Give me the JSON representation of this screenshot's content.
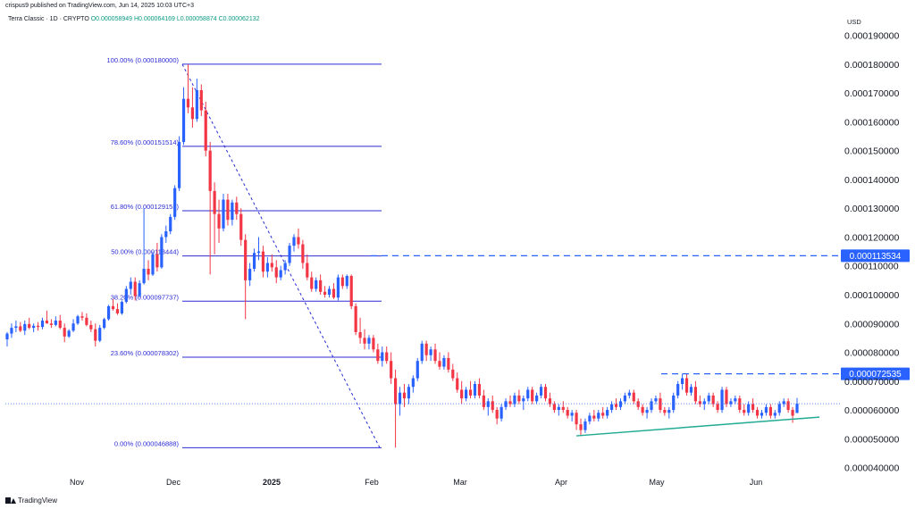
{
  "header": {
    "published": "crispus9 published on TradingView.com, Jun 14, 2025 10:03 UTC+3",
    "symbol": "Terra Classic · 1D · CRYPTO",
    "ohlc": "O0.000058949  H0.000064169  L0.000058874  C0.000062132",
    "currency": "USD"
  },
  "footer": {
    "brand": "TradingView"
  },
  "colors": {
    "up": "#2962ff",
    "down": "#f23645",
    "fib": "#2b2bd6",
    "trend": "#22ab94",
    "badge": "#2962ff"
  },
  "chart_data": {
    "type": "candlestick",
    "x_ticks": [
      "Nov",
      "Dec",
      "2025",
      "Feb",
      "Mar",
      "Apr",
      "May",
      "Jun"
    ],
    "y_ticks": [
      "0.000040000",
      "0.000050000",
      "0.000060000",
      "0.000070000",
      "0.000080000",
      "0.000090000",
      "0.000100000",
      "0.000110000",
      "0.000120000",
      "0.000130000",
      "0.000140000",
      "0.000150000",
      "0.000160000",
      "0.000170000",
      "0.000180000",
      "0.000190000"
    ],
    "ylim": [
      3.8e-05,
      0.000193
    ],
    "fib_levels": [
      {
        "label": "100.00% (0.000180000)",
        "value": 0.00018
      },
      {
        "label": "78.60% (0.000151514)",
        "value": 0.000151514
      },
      {
        "label": "61.80% (0.000129153)",
        "value": 0.000129153
      },
      {
        "label": "50.00% (0.000113444)",
        "value": 0.000113444
      },
      {
        "label": "38.20% (0.000097737)",
        "value": 9.7737e-05
      },
      {
        "label": "23.60% (0.000078302)",
        "value": 7.8302e-05
      },
      {
        "label": "0.00% (0.000046888)",
        "value": 4.6888e-05
      }
    ],
    "price_badges": [
      {
        "label": "0.000113534",
        "value": 0.000113534
      },
      {
        "label": "0.000072535",
        "value": 7.2535e-05
      }
    ],
    "last_price": 6.2132e-05,
    "trendline": {
      "from": [
        5.1e-05,
        "Apr 7"
      ],
      "to": [
        5.75e-05,
        "Jun 20"
      ]
    },
    "candles": [
      [
        8.45e-05,
        8.7e-05,
        8.2e-05,
        8.65e-05
      ],
      [
        8.65e-05,
        9e-05,
        8.5e-05,
        8.85e-05
      ],
      [
        8.85e-05,
        9.1e-05,
        8.7e-05,
        8.9e-05
      ],
      [
        8.9e-05,
        9.05e-05,
        8.7e-05,
        8.75e-05
      ],
      [
        8.75e-05,
        9.1e-05,
        8.6e-05,
        8.98e-05
      ],
      [
        8.98e-05,
        9.2e-05,
        8.8e-05,
        8.85e-05
      ],
      [
        8.85e-05,
        9e-05,
        8.7e-05,
        8.92e-05
      ],
      [
        8.92e-05,
        9.05e-05,
        8.75e-05,
        8.88e-05
      ],
      [
        8.88e-05,
        9.2e-05,
        8.8e-05,
        9.1e-05
      ],
      [
        9.1e-05,
        9.45e-05,
        9e-05,
        9e-05
      ],
      [
        9e-05,
        9.15e-05,
        8.85e-05,
        8.95e-05
      ],
      [
        8.95e-05,
        9.25e-05,
        8.9e-05,
        9.1e-05
      ],
      [
        9.1e-05,
        9.3e-05,
        8.8e-05,
        8.85e-05
      ],
      [
        8.85e-05,
        9e-05,
        8.35e-05,
        8.55e-05
      ],
      [
        8.55e-05,
        8.8e-05,
        8.5e-05,
        8.75e-05
      ],
      [
        8.75e-05,
        9.15e-05,
        8.7e-05,
        9e-05
      ],
      [
        9e-05,
        9.3e-05,
        8.95e-05,
        9.25e-05
      ],
      [
        9.25e-05,
        9.4e-05,
        9.1e-05,
        9.2e-05
      ],
      [
        9.2e-05,
        9.35e-05,
        8.9e-05,
        8.95e-05
      ],
      [
        8.95e-05,
        9.1e-05,
        8.7e-05,
        8.8e-05
      ],
      [
        8.8e-05,
        9e-05,
        8.2e-05,
        8.4e-05
      ],
      [
        8.4e-05,
        8.95e-05,
        8.35e-05,
        8.85e-05
      ],
      [
        8.85e-05,
        9.2e-05,
        8.8e-05,
        9.15e-05
      ],
      [
        9.15e-05,
        9.65e-05,
        9.1e-05,
        9.6e-05
      ],
      [
        9.6e-05,
        9.85e-05,
        9.45e-05,
        9.5e-05
      ],
      [
        9.5e-05,
        9.7e-05,
        9.3e-05,
        9.35e-05
      ],
      [
        9.35e-05,
        9.8e-05,
        9.3e-05,
        9.75e-05
      ],
      [
        9.75e-05,
        0.000103,
        9.7e-05,
        0.000102
      ],
      [
        0.000102,
        0.000106,
        0.0001,
        0.0001045
      ],
      [
        0.0001045,
        0.000106,
        9.8e-05,
        9.95e-05
      ],
      [
        9.95e-05,
        0.000105,
        9.9e-05,
        0.000104
      ],
      [
        0.000104,
        0.00013,
        0.0001035,
        0.000109
      ],
      [
        0.000109,
        0.000112,
        0.000105,
        0.000107
      ],
      [
        0.000107,
        0.000115,
        0.0001065,
        0.000114
      ],
      [
        0.000114,
        0.000118,
        0.000108,
        0.0001095
      ],
      [
        0.0001095,
        0.000121,
        0.000109,
        0.00012
      ],
      [
        0.00012,
        0.000124,
        0.000118,
        0.000122
      ],
      [
        0.000122,
        0.000128,
        0.000121,
        0.000127
      ],
      [
        0.000127,
        0.000138,
        0.000126,
        0.000137
      ],
      [
        0.000137,
        0.000155,
        0.000136,
        0.000153
      ],
      [
        0.000153,
        0.000172,
        0.000152,
        0.000168
      ],
      [
        0.000168,
        0.00018,
        0.000163,
        0.000165
      ],
      [
        0.000165,
        0.000172,
        0.000158,
        0.000161
      ],
      [
        0.000161,
        0.000175,
        0.00016,
        0.000171
      ],
      [
        0.000171,
        0.000173,
        0.000162,
        0.000164
      ],
      [
        0.000164,
        0.000167,
        0.000148,
        0.00015
      ],
      [
        0.00015,
        0.000153,
        0.000107,
        0.000136
      ],
      [
        0.000136,
        0.000139,
        0.000114,
        0.000128
      ],
      [
        0.000128,
        0.000133,
        0.000118,
        0.000123
      ],
      [
        0.000123,
        0.000135,
        0.000122,
        0.000133
      ],
      [
        0.000133,
        0.000135,
        0.000124,
        0.000126
      ],
      [
        0.000126,
        0.000133,
        0.000124,
        0.000132
      ],
      [
        0.000132,
        0.000134,
        0.000126,
        0.000128
      ],
      [
        0.000128,
        0.00013,
        0.000117,
        0.000119
      ],
      [
        0.000119,
        0.000121,
        9.15e-05,
        0.000105
      ],
      [
        0.000105,
        0.000111,
        0.000103,
        0.000109
      ],
      [
        0.000109,
        0.000116,
        0.000108,
        0.0001145
      ],
      [
        0.0001145,
        0.00012,
        0.000112,
        0.000115
      ],
      [
        0.000115,
        0.000117,
        0.000106,
        0.000108
      ],
      [
        0.000108,
        0.000113,
        0.000106,
        0.000111
      ],
      [
        0.000111,
        0.000114,
        0.000108,
        0.0001095
      ],
      [
        0.0001095,
        0.000112,
        0.000104,
        0.000106
      ],
      [
        0.000106,
        0.00011,
        0.000105,
        0.0001085
      ],
      [
        0.0001085,
        0.000112,
        0.000107,
        0.000111
      ],
      [
        0.000111,
        0.000118,
        0.00011,
        0.000117
      ],
      [
        0.000117,
        0.000121,
        0.000115,
        0.00012
      ],
      [
        0.00012,
        0.000123,
        0.000116,
        0.0001175
      ],
      [
        0.0001175,
        0.000119,
        0.000109,
        0.000111
      ],
      [
        0.000111,
        0.000114,
        0.000105,
        0.000106
      ],
      [
        0.000106,
        0.000108,
        0.000101,
        0.000102
      ],
      [
        0.000102,
        0.000106,
        0.000101,
        0.000105
      ],
      [
        0.000105,
        0.000107,
        0.0001,
        0.000101
      ],
      [
        0.000101,
        0.000103,
        9.9e-05,
        0.0001
      ],
      [
        0.0001,
        0.000103,
        9.9e-05,
        0.000102
      ],
      [
        0.000102,
        0.000104,
        9.85e-05,
        9.9e-05
      ],
      [
        9.9e-05,
        0.000107,
        9.8e-05,
        0.000106
      ],
      [
        0.000106,
        0.000107,
        0.000102,
        0.000103
      ],
      [
        0.000103,
        0.000107,
        0.000102,
        0.0001065
      ],
      [
        0.0001065,
        0.000107,
        9.5e-05,
        9.6e-05
      ],
      [
        9.6e-05,
        9.7e-05,
        8.6e-05,
        8.7e-05
      ],
      [
        8.7e-05,
        9.2e-05,
        8.3e-05,
        8.5e-05
      ],
      [
        8.5e-05,
        8.8e-05,
        8.1e-05,
        8.3e-05
      ],
      [
        8.3e-05,
        8.6e-05,
        8.1e-05,
        8.5e-05
      ],
      [
        8.5e-05,
        8.6e-05,
        8e-05,
        8.1e-05
      ],
      [
        8.1e-05,
        8.3e-05,
        7.6e-05,
        7.7e-05
      ],
      [
        7.7e-05,
        8.2e-05,
        7.5e-05,
        8e-05
      ],
      [
        8e-05,
        8.2e-05,
        7.6e-05,
        7.7e-05
      ],
      [
        7.7e-05,
        8e-05,
        6.9e-05,
        7.1e-05
      ],
      [
        7.1e-05,
        7.4e-05,
        4.69e-05,
        6.2e-05
      ],
      [
        6.2e-05,
        6.8e-05,
        5.8e-05,
        6.6e-05
      ],
      [
        6.6e-05,
        6.9e-05,
        6.1e-05,
        6.4e-05
      ],
      [
        6.4e-05,
        6.9e-05,
        6.2e-05,
        6.8e-05
      ],
      [
        6.8e-05,
        7.2e-05,
        6.6e-05,
        7.1e-05
      ],
      [
        7.1e-05,
        7.8e-05,
        7e-05,
        7.7e-05
      ],
      [
        7.7e-05,
        8.4e-05,
        7.6e-05,
        8.3e-05
      ],
      [
        8.3e-05,
        8.4e-05,
        7.7e-05,
        7.9e-05
      ],
      [
        7.9e-05,
        8.2e-05,
        7.7e-05,
        8.1e-05
      ],
      [
        8.1e-05,
        8.3e-05,
        7.6e-05,
        7.7e-05
      ],
      [
        7.7e-05,
        8e-05,
        7.4e-05,
        7.5e-05
      ],
      [
        7.5e-05,
        7.9e-05,
        7.4e-05,
        7.8e-05
      ],
      [
        7.8e-05,
        8e-05,
        7.3e-05,
        7.4e-05
      ],
      [
        7.4e-05,
        7.6e-05,
        7e-05,
        7.1e-05
      ],
      [
        7.1e-05,
        7.3e-05,
        6.6e-05,
        6.7e-05
      ],
      [
        6.7e-05,
        7e-05,
        6.2e-05,
        6.4e-05
      ],
      [
        6.4e-05,
        6.8e-05,
        6.3e-05,
        6.7e-05
      ],
      [
        6.7e-05,
        7e-05,
        6.4e-05,
        6.5e-05
      ],
      [
        6.5e-05,
        7e-05,
        6.4e-05,
        6.9e-05
      ],
      [
        6.9e-05,
        7.1e-05,
        6.4e-05,
        6.5e-05
      ],
      [
        6.5e-05,
        6.7e-05,
        6e-05,
        6.1e-05
      ],
      [
        6.1e-05,
        6.4e-05,
        5.8e-05,
        6.3e-05
      ],
      [
        6.3e-05,
        6.5e-05,
        5.9e-05,
        6e-05
      ],
      [
        6e-05,
        6.1e-05,
        5.5e-05,
        5.7e-05
      ],
      [
        5.7e-05,
        6.2e-05,
        5.6e-05,
        6.1e-05
      ],
      [
        6.1e-05,
        6.4e-05,
        6e-05,
        6.3e-05
      ],
      [
        6.3e-05,
        6.5e-05,
        6.1e-05,
        6.2e-05
      ],
      [
        6.2e-05,
        6.6e-05,
        6.1e-05,
        6.5e-05
      ],
      [
        6.5e-05,
        6.7e-05,
        6.2e-05,
        6.3e-05
      ],
      [
        6.3e-05,
        6.5e-05,
        6e-05,
        6.4e-05
      ],
      [
        6.4e-05,
        6.8e-05,
        6.3e-05,
        6.7e-05
      ],
      [
        6.7e-05,
        6.8e-05,
        6.2e-05,
        6.3e-05
      ],
      [
        6.3e-05,
        6.6e-05,
        6.2e-05,
        6.5e-05
      ],
      [
        6.5e-05,
        6.9e-05,
        6.4e-05,
        6.8e-05
      ],
      [
        6.8e-05,
        6.9e-05,
        6.3e-05,
        6.4e-05
      ],
      [
        6.4e-05,
        6.6e-05,
        6.1e-05,
        6.2e-05
      ],
      [
        6.2e-05,
        6.3e-05,
        5.9e-05,
        6e-05
      ],
      [
        6e-05,
        6.2e-05,
        5.8e-05,
        6.1e-05
      ],
      [
        6.1e-05,
        6.3e-05,
        5.9e-05,
        6e-05
      ],
      [
        6e-05,
        6.1e-05,
        5.7e-05,
        5.8e-05
      ],
      [
        5.8e-05,
        6e-05,
        5.6e-05,
        5.9e-05
      ],
      [
        5.9e-05,
        6e-05,
        5.3e-05,
        5.5e-05
      ],
      [
        5.5e-05,
        5.7e-05,
        5.1e-05,
        5.3e-05
      ],
      [
        5.3e-05,
        5.7e-05,
        5.2e-05,
        5.6e-05
      ],
      [
        5.6e-05,
        5.9e-05,
        5.5e-05,
        5.8e-05
      ],
      [
        5.8e-05,
        6e-05,
        5.6e-05,
        5.7e-05
      ],
      [
        5.7e-05,
        6e-05,
        5.6e-05,
        5.9e-05
      ],
      [
        5.9e-05,
        6.1e-05,
        5.7e-05,
        5.8e-05
      ],
      [
        5.8e-05,
        6.1e-05,
        5.7e-05,
        6e-05
      ],
      [
        6e-05,
        6.3e-05,
        5.9e-05,
        6.2e-05
      ],
      [
        6.2e-05,
        6.4e-05,
        6e-05,
        6.1e-05
      ],
      [
        6.1e-05,
        6.4e-05,
        6e-05,
        6.3e-05
      ],
      [
        6.3e-05,
        6.6e-05,
        6.2e-05,
        6.5e-05
      ],
      [
        6.5e-05,
        6.7e-05,
        6.4e-05,
        6.6e-05
      ],
      [
        6.6e-05,
        6.7e-05,
        6.2e-05,
        6.3e-05
      ],
      [
        6.3e-05,
        6.4e-05,
        6e-05,
        6.1e-05
      ],
      [
        6.1e-05,
        6.2e-05,
        5.8e-05,
        5.9e-05
      ],
      [
        5.9e-05,
        6.1e-05,
        5.7e-05,
        6e-05
      ],
      [
        6e-05,
        6.4e-05,
        5.9e-05,
        6.3e-05
      ],
      [
        6.3e-05,
        6.5e-05,
        6.2e-05,
        6.4e-05
      ],
      [
        6.4e-05,
        6.6e-05,
        5.9e-05,
        6e-05
      ],
      [
        6e-05,
        6.1e-05,
        5.8e-05,
        5.9e-05
      ],
      [
        5.9e-05,
        6.1e-05,
        5.7e-05,
        6e-05
      ],
      [
        6e-05,
        6.6e-05,
        5.9e-05,
        6.5e-05
      ],
      [
        6.5e-05,
        7e-05,
        6.4e-05,
        6.9e-05
      ],
      [
        6.9e-05,
        7.26e-05,
        6.7e-05,
        7.1e-05
      ],
      [
        7.1e-05,
        7.26e-05,
        6.5e-05,
        6.6e-05
      ],
      [
        6.6e-05,
        6.9e-05,
        6.5e-05,
        6.8e-05
      ],
      [
        6.8e-05,
        7e-05,
        6.2e-05,
        6.3e-05
      ],
      [
        6.3e-05,
        6.5e-05,
        6.1e-05,
        6.2e-05
      ],
      [
        6.2e-05,
        6.4e-05,
        6e-05,
        6.3e-05
      ],
      [
        6.3e-05,
        6.6e-05,
        6.2e-05,
        6.5e-05
      ],
      [
        6.5e-05,
        6.6e-05,
        6.1e-05,
        6.2e-05
      ],
      [
        6.2e-05,
        6.3e-05,
        5.9e-05,
        6e-05
      ],
      [
        6e-05,
        6.8e-05,
        5.9e-05,
        6.7e-05
      ],
      [
        6.7e-05,
        6.8e-05,
        6.1e-05,
        6.2e-05
      ],
      [
        6.2e-05,
        6.4e-05,
        6.1e-05,
        6.3e-05
      ],
      [
        6.3e-05,
        6.5e-05,
        6.2e-05,
        6.4e-05
      ],
      [
        6.4e-05,
        6.5e-05,
        5.9e-05,
        6e-05
      ],
      [
        6e-05,
        6.2e-05,
        5.8e-05,
        5.9e-05
      ],
      [
        5.9e-05,
        6.3e-05,
        5.8e-05,
        6.2e-05
      ],
      [
        6.2e-05,
        6.4e-05,
        5.9e-05,
        6e-05
      ],
      [
        6e-05,
        6.1e-05,
        5.7e-05,
        5.8e-05
      ],
      [
        5.8e-05,
        6e-05,
        5.7e-05,
        5.9e-05
      ],
      [
        5.9e-05,
        6.2e-05,
        5.8e-05,
        6.1e-05
      ],
      [
        6.1e-05,
        6.2e-05,
        5.7e-05,
        5.8e-05
      ],
      [
        5.8e-05,
        6e-05,
        5.7e-05,
        5.9e-05
      ],
      [
        5.9e-05,
        6.3e-05,
        5.8e-05,
        6.2e-05
      ],
      [
        6.2e-05,
        6.4e-05,
        6.1e-05,
        6.3e-05
      ],
      [
        6.3e-05,
        6.4e-05,
        5.9e-05,
        6e-05
      ],
      [
        6e-05,
        6.1e-05,
        5.55e-05,
        5.8e-05
      ],
      [
        5.8949e-05,
        6.4169e-05,
        5.8874e-05,
        6.2132e-05
      ]
    ]
  }
}
